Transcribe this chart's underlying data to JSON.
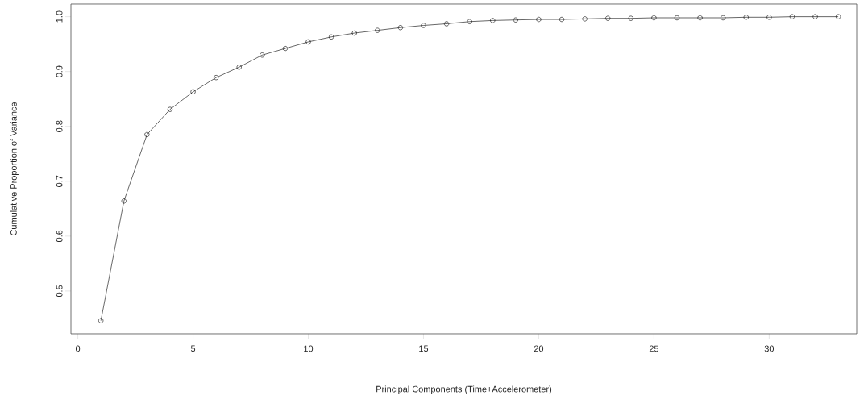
{
  "chart_data": {
    "type": "line",
    "xlabel": "Principal Components (Time+Accelerometer)",
    "ylabel": "Cumulative Proportion of Variance",
    "x": [
      1,
      2,
      3,
      4,
      5,
      6,
      7,
      8,
      9,
      10,
      11,
      12,
      13,
      14,
      15,
      16,
      17,
      18,
      19,
      20,
      21,
      22,
      23,
      24,
      25,
      26,
      27,
      28,
      29,
      30,
      31,
      32,
      33
    ],
    "series": [
      {
        "color": "#000000",
        "values": [
          0.446,
          0.664,
          0.785,
          0.831,
          0.863,
          0.889,
          0.908,
          0.93,
          0.942,
          0.954,
          0.963,
          0.97,
          0.975,
          0.98,
          0.984,
          0.987,
          0.991,
          0.993,
          0.994,
          0.995,
          0.995,
          0.996,
          0.997,
          0.997,
          0.998,
          0.998,
          0.998,
          0.998,
          0.999,
          0.999,
          1.0,
          1.0,
          1.0
        ]
      }
    ],
    "xlim": [
      -0.3,
      33.8
    ],
    "ylim": [
      0.422,
      1.023
    ],
    "xticks": [
      0,
      5,
      10,
      15,
      20,
      25,
      30
    ],
    "yticks": [
      0.5,
      0.6,
      0.7,
      0.8,
      0.9,
      {
        "value": 1.0,
        "label": "1.0"
      }
    ],
    "marker": "circle",
    "line_style": "solid",
    "grid": false
  }
}
